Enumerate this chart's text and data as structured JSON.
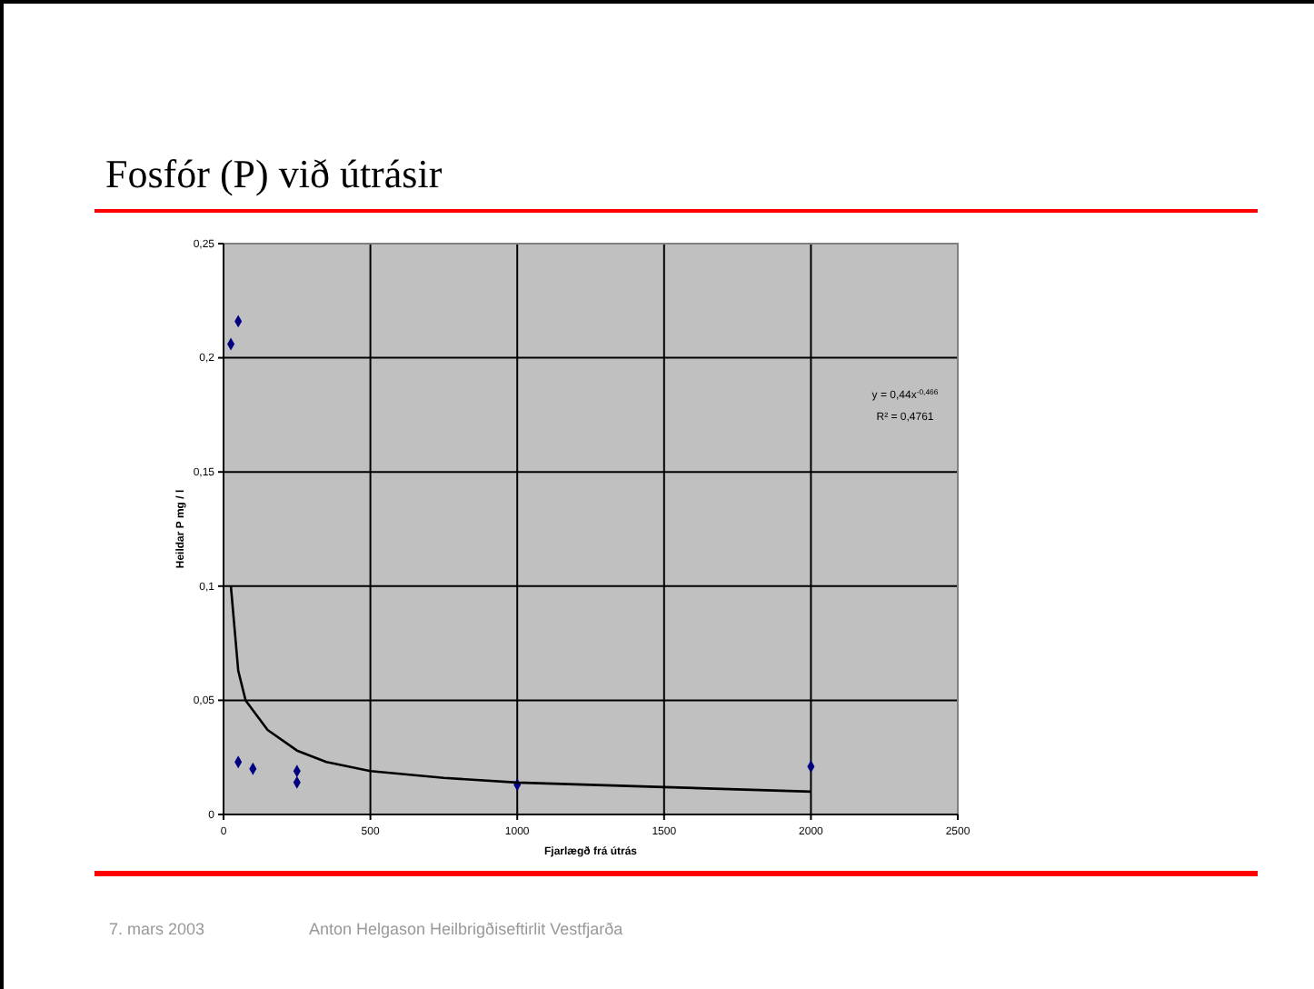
{
  "chart_data": {
    "type": "scatter",
    "title": "Fosfór (P) við útrásir",
    "xlabel": "Fjarlægð frá útrás",
    "ylabel": "Heildar P mg / l",
    "xlim": [
      0,
      2500
    ],
    "xticks": [
      0,
      500,
      1000,
      1500,
      2000,
      2500
    ],
    "ylim": [
      0,
      0.25
    ],
    "yticks": [
      0,
      {
        "value": 0.05,
        "label": "0,05"
      },
      {
        "value": 0.1,
        "label": "0,1"
      },
      {
        "value": 0.15,
        "label": "0,15"
      },
      {
        "value": 0.2,
        "label": "0,2"
      },
      {
        "value": 0.25,
        "label": "0,25"
      }
    ],
    "grid": true,
    "marker": "diamond",
    "series": [
      {
        "color": "#000080",
        "x": [
          25,
          50,
          50,
          100,
          250,
          250,
          1000,
          2000
        ],
        "values": [
          0.206,
          0.216,
          0.023,
          0.02,
          0.019,
          0.014,
          0.013,
          0.021
        ]
      },
      {
        "type": "line",
        "color": "#000000",
        "marker": "none",
        "x": [
          25,
          50,
          75,
          150,
          250,
          350,
          500,
          750,
          1000,
          1500,
          2000
        ],
        "values": [
          0.1,
          0.063,
          0.05,
          0.037,
          0.028,
          0.023,
          0.019,
          0.016,
          0.014,
          0.012,
          0.01
        ]
      }
    ],
    "annotations": [
      "y = 0,44x$^{-0,466}$",
      "R² = 0,4761",
      "7. mars 2003",
      "Anton Helgason Heilbrigðiseftirlit Vestfjarða"
    ]
  }
}
